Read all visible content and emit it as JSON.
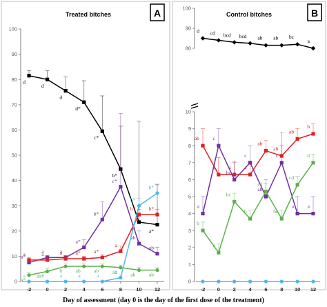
{
  "x_axis_label": "Day of assessment (day 0 is the day of the first dose of the treatment)",
  "chart_data": [
    {
      "panel": "A",
      "type": "line",
      "title": "Treated bitches",
      "badge": "A",
      "x": [
        -2,
        0,
        2,
        4,
        6,
        8,
        10,
        12
      ],
      "xticks": [
        "-2",
        "0",
        "2",
        "4",
        "6",
        "8",
        "10",
        "12"
      ],
      "ylim": [
        0,
        100
      ],
      "yticks": [
        "0",
        "10",
        "20",
        "30",
        "40",
        "50",
        "60",
        "70",
        "80",
        "90",
        "100"
      ],
      "series": [
        {
          "color": "#000000",
          "marker": "square",
          "values": [
            81.5,
            80,
            75.5,
            71,
            59.5,
            44.5,
            23.5,
            22.5
          ],
          "err": [
            2,
            3.5,
            5.5,
            8.5,
            14,
            17,
            40,
            16
          ],
          "labels": [
            "d",
            "d",
            "d",
            "d*",
            "c*",
            "b*",
            "a*",
            "a*"
          ]
        },
        {
          "color": "#7030a0",
          "marker": "square",
          "values": [
            7.5,
            9.5,
            9.5,
            13.5,
            24.5,
            37.5,
            15,
            11
          ],
          "err": [
            1,
            0.8,
            0.8,
            3,
            7,
            29,
            5,
            2.5
          ],
          "labels": [
            "a*",
            "a",
            "a",
            "a*",
            "b*",
            "c*",
            "ab",
            "ab"
          ]
        },
        {
          "color": "#e02020",
          "marker": "square",
          "values": [
            8.5,
            8.5,
            9,
            9,
            9.5,
            12,
            26.5,
            26.5
          ],
          "err": [
            1,
            1,
            1,
            1,
            1,
            2,
            2,
            2
          ],
          "labels": [
            "a",
            "a",
            "a",
            "a*",
            "a*",
            "a",
            "b*",
            "b*"
          ]
        },
        {
          "color": "#5ab14b",
          "marker": "circle",
          "values": [
            2.5,
            4,
            6,
            6,
            6,
            5.5,
            4.5,
            4.5
          ],
          "err": [
            1,
            1,
            1,
            1,
            1,
            1,
            1,
            1
          ],
          "labels": [
            "a*",
            "ab*",
            "b",
            "ab",
            "ab",
            "ab",
            "ab",
            "ab"
          ]
        },
        {
          "color": "#4db8e8",
          "marker": "circle",
          "values": [
            0,
            0,
            0,
            0,
            0,
            1.5,
            30,
            35
          ],
          "err": [
            0,
            0,
            0,
            0,
            0,
            1,
            3,
            3
          ],
          "labels": [
            "a",
            "a",
            "a",
            "a",
            "a",
            "a",
            "b*",
            "b*"
          ]
        }
      ]
    },
    {
      "panel": "B",
      "type": "line",
      "title": "Control bitches",
      "badge": "B",
      "x": [
        -2,
        0,
        2,
        4,
        6,
        8,
        10,
        12
      ],
      "xticks": [
        "-2",
        "0",
        "2",
        "4",
        "6",
        "8",
        "10",
        "12"
      ],
      "upper": {
        "ylim": [
          80,
          100
        ],
        "yticks": [
          "80",
          "90",
          "100"
        ],
        "series": [
          {
            "color": "#000000",
            "marker": "diamond",
            "values": [
              85,
              84,
              83,
              82.5,
              81.5,
              81.5,
              82,
              80
            ],
            "err": [
              0,
              0,
              0,
              0,
              0,
              0,
              0,
              0
            ],
            "labels": [
              "d",
              "cd",
              "bcd",
              "bcd",
              "ab",
              "ab",
              "bc",
              "a"
            ]
          }
        ]
      },
      "lower": {
        "ylim": [
          0,
          10
        ],
        "yticks": [
          "0",
          "1",
          "2",
          "3",
          "4",
          "5",
          "6",
          "7",
          "8",
          "9",
          "10"
        ],
        "series": [
          {
            "color": "#e02020",
            "marker": "square",
            "values": [
              8,
              6.3,
              6.3,
              6.3,
              7.7,
              7.4,
              8.4,
              8.7
            ],
            "err": [
              1,
              1,
              0.8,
              0.8,
              0.6,
              1.4,
              0.6,
              0.6
            ],
            "labels": [
              "ab",
              "a",
              "a",
              "a",
              "ab",
              "ab",
              "ab",
              "b"
            ]
          },
          {
            "color": "#7030a0",
            "marker": "square",
            "values": [
              4,
              8,
              6,
              7,
              5,
              7,
              4,
              4
            ],
            "err": [
              1,
              1,
              1,
              1,
              1,
              1,
              1,
              1
            ],
            "labels": [
              "a",
              "c",
              "bc",
              "c",
              "ab",
              "c",
              "a",
              "a"
            ]
          },
          {
            "color": "#5ab14b",
            "marker": "square",
            "values": [
              3,
              1.7,
              4.7,
              3.7,
              5.3,
              3.7,
              5.7,
              7
            ],
            "err": [
              0.5,
              0.5,
              0.5,
              0.5,
              0.5,
              0.5,
              0.5,
              0.5
            ],
            "labels": [
              "b",
              "a",
              "bc",
              "b",
              "cd",
              "bc",
              "cd",
              "d"
            ]
          },
          {
            "color": "#4db8e8",
            "marker": "circle",
            "values": [
              0,
              0,
              0,
              0,
              0,
              0,
              0,
              0
            ],
            "err": [
              0,
              0,
              0,
              0,
              0,
              0,
              0,
              0
            ],
            "labels": [
              "",
              "",
              "",
              "",
              "",
              "",
              "",
              ""
            ]
          }
        ]
      }
    }
  ]
}
